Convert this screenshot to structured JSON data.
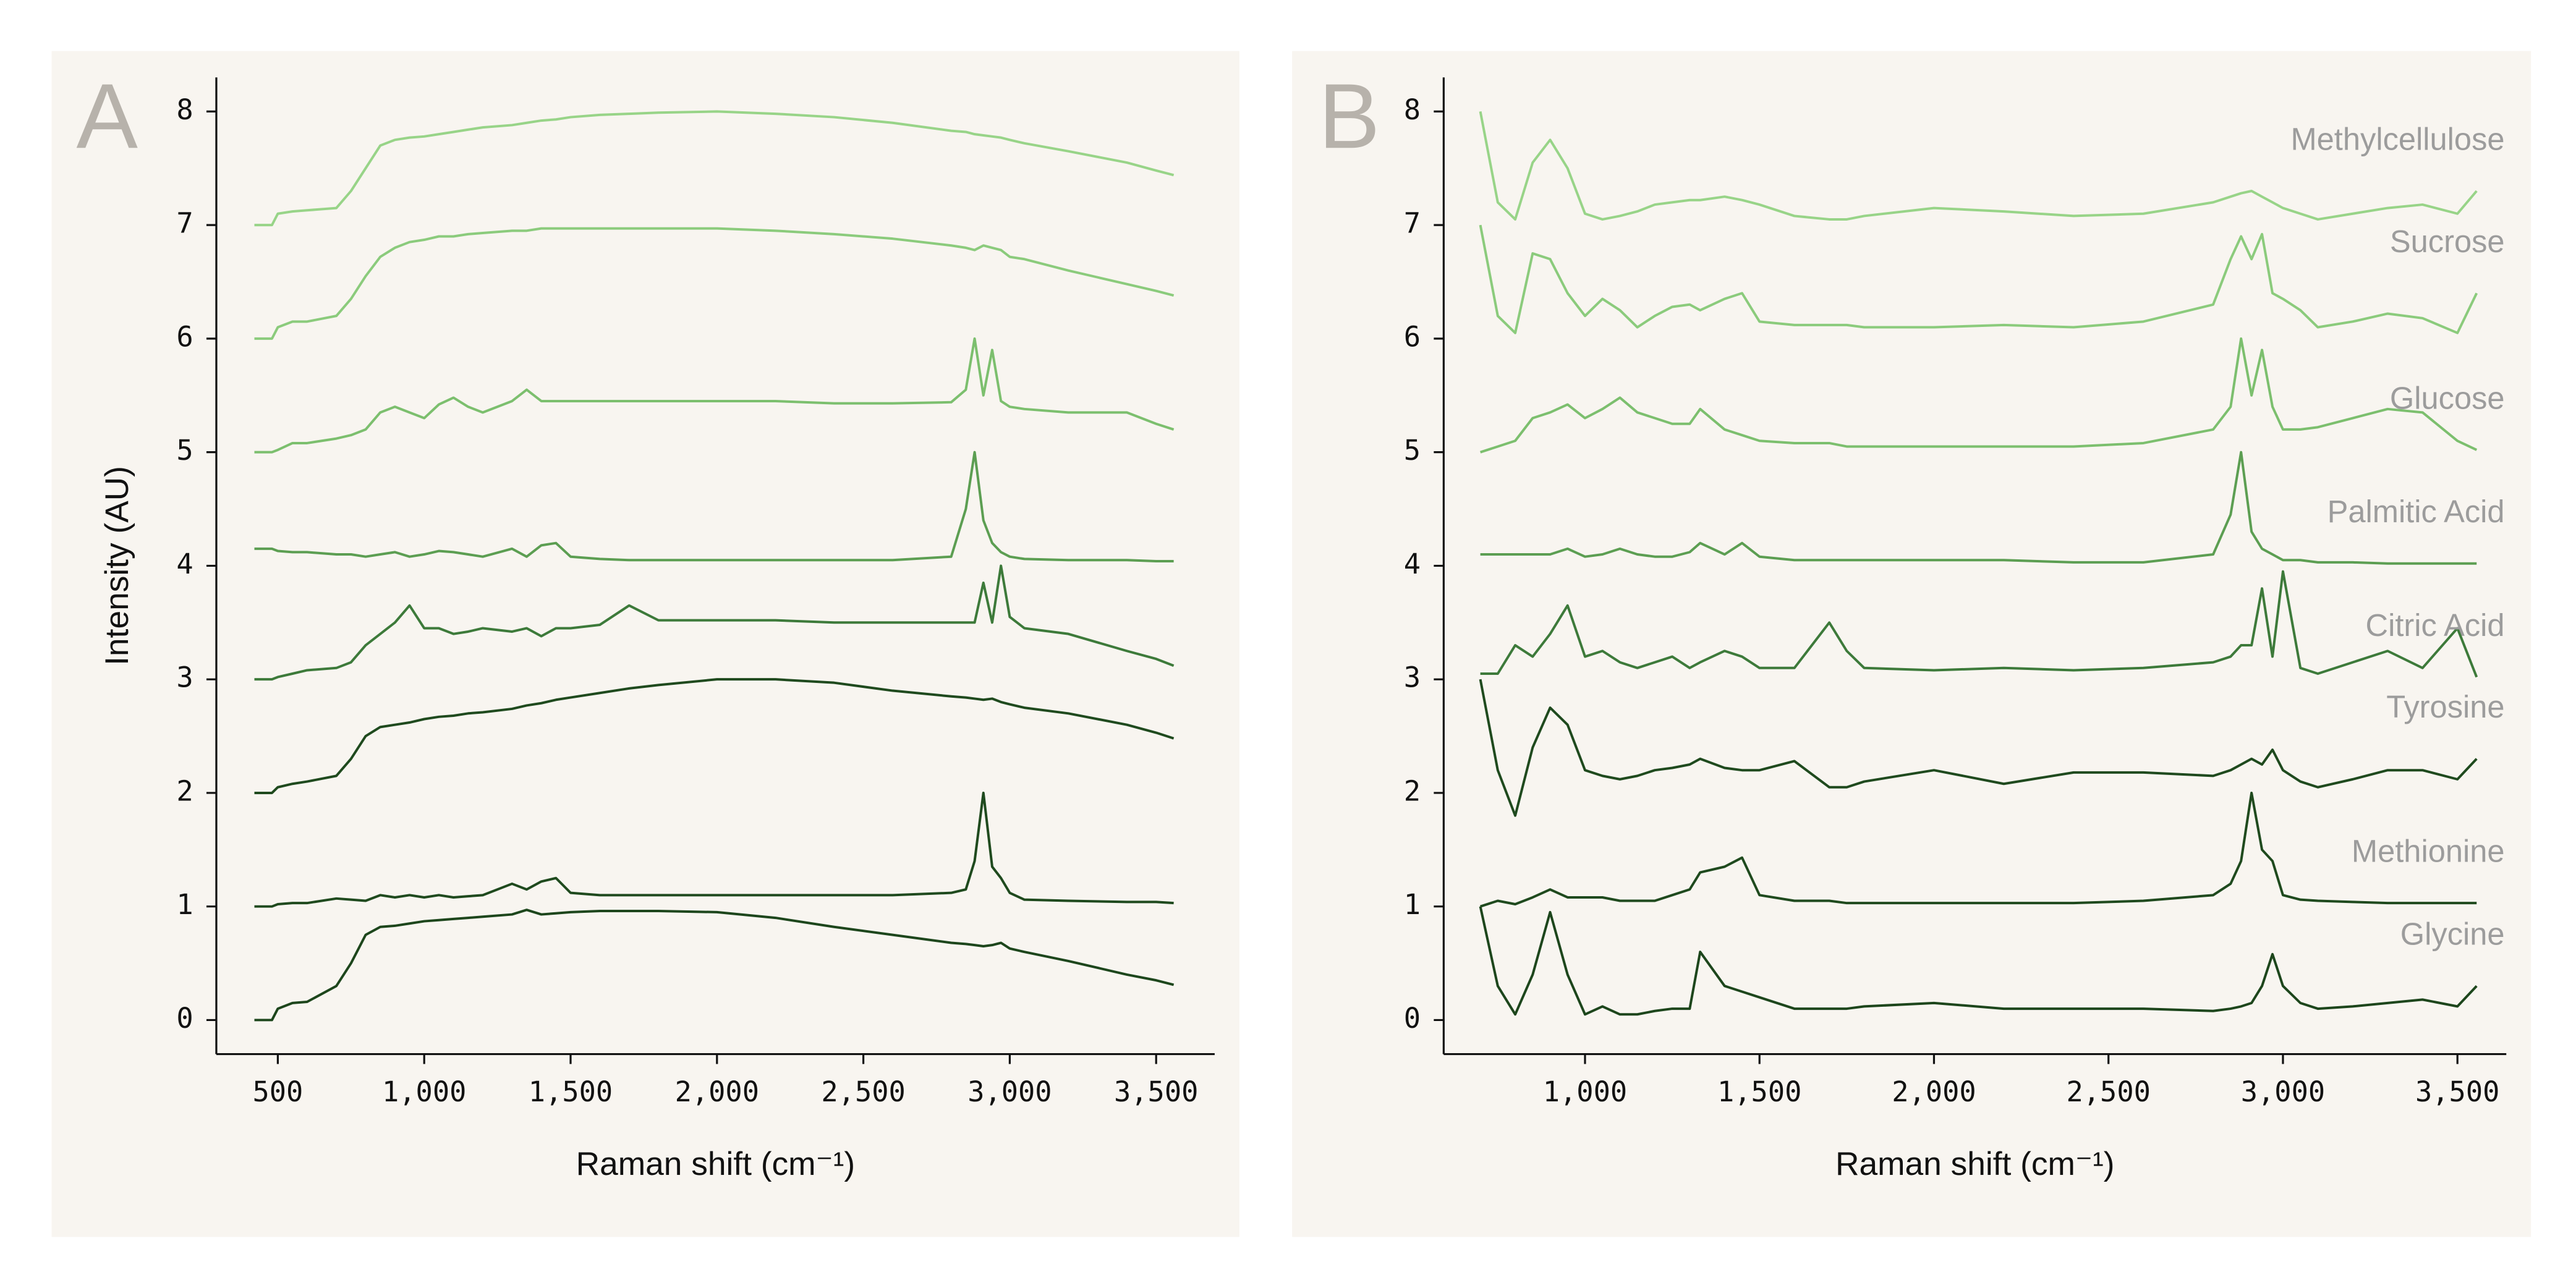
{
  "chart_data": [
    {
      "type": "line",
      "panel_label": "A",
      "x_label": "Raman shift (cm⁻¹)",
      "y_label": "Intensity (AU)",
      "xlim": [
        290,
        3700
      ],
      "ylim": [
        -0.3,
        8.3
      ],
      "xticks": [
        500,
        {
          "value": 1000,
          "label": "1,000"
        },
        {
          "value": 1500,
          "label": "1,500"
        },
        {
          "value": 2000,
          "label": "2,000"
        },
        {
          "value": 2500,
          "label": "2,500"
        },
        {
          "value": 3000,
          "label": "3,000"
        },
        {
          "value": 3500,
          "label": "3,500"
        }
      ],
      "yticks": [
        0,
        1,
        2,
        3,
        4,
        5,
        6,
        7,
        8
      ],
      "x": [
        420,
        480,
        500,
        550,
        600,
        700,
        750,
        800,
        850,
        900,
        950,
        1000,
        1050,
        1100,
        1150,
        1200,
        1300,
        1350,
        1400,
        1450,
        1500,
        1600,
        1700,
        1800,
        2000,
        2200,
        2400,
        2600,
        2800,
        2850,
        2880,
        2910,
        2940,
        2970,
        3000,
        3050,
        3200,
        3400,
        3500,
        3560
      ],
      "series": [
        {
          "color": "#1d461c",
          "values": [
            0,
            0,
            0.1,
            0.15,
            0.16,
            0.3,
            0.5,
            0.75,
            0.82,
            0.83,
            0.85,
            0.87,
            0.88,
            0.89,
            0.9,
            0.91,
            0.93,
            0.97,
            0.93,
            0.94,
            0.95,
            0.96,
            0.96,
            0.96,
            0.95,
            0.9,
            0.82,
            0.75,
            0.68,
            0.67,
            0.66,
            0.65,
            0.66,
            0.68,
            0.63,
            0.6,
            0.52,
            0.4,
            0.35,
            0.31
          ]
        },
        {
          "color": "#1f4a1e",
          "values": [
            1.0,
            1.0,
            1.02,
            1.03,
            1.03,
            1.07,
            1.06,
            1.05,
            1.1,
            1.08,
            1.1,
            1.08,
            1.1,
            1.08,
            1.09,
            1.1,
            1.2,
            1.15,
            1.22,
            1.25,
            1.12,
            1.1,
            1.1,
            1.1,
            1.1,
            1.1,
            1.1,
            1.1,
            1.12,
            1.15,
            1.4,
            2.0,
            1.35,
            1.25,
            1.12,
            1.06,
            1.05,
            1.04,
            1.04,
            1.03
          ]
        },
        {
          "color": "#1f4a1e",
          "values": [
            2,
            2,
            2.05,
            2.08,
            2.1,
            2.15,
            2.3,
            2.5,
            2.58,
            2.6,
            2.62,
            2.65,
            2.67,
            2.68,
            2.7,
            2.71,
            2.74,
            2.77,
            2.79,
            2.82,
            2.84,
            2.88,
            2.92,
            2.95,
            3.0,
            3.0,
            2.97,
            2.9,
            2.85,
            2.84,
            2.83,
            2.82,
            2.83,
            2.8,
            2.78,
            2.75,
            2.7,
            2.6,
            2.53,
            2.48
          ]
        },
        {
          "color": "#3d7a3a",
          "values": [
            3,
            3,
            3.02,
            3.05,
            3.08,
            3.1,
            3.15,
            3.3,
            3.4,
            3.5,
            3.65,
            3.45,
            3.45,
            3.4,
            3.42,
            3.45,
            3.42,
            3.45,
            3.38,
            3.45,
            3.45,
            3.48,
            3.65,
            3.52,
            3.52,
            3.52,
            3.5,
            3.5,
            3.5,
            3.5,
            3.5,
            3.85,
            3.5,
            4.0,
            3.55,
            3.45,
            3.4,
            3.25,
            3.18,
            3.12
          ]
        },
        {
          "color": "#5c9e52",
          "values": [
            4.15,
            4.15,
            4.13,
            4.12,
            4.12,
            4.1,
            4.1,
            4.08,
            4.1,
            4.12,
            4.08,
            4.1,
            4.13,
            4.12,
            4.1,
            4.08,
            4.15,
            4.08,
            4.18,
            4.2,
            4.08,
            4.06,
            4.05,
            4.05,
            4.05,
            4.05,
            4.05,
            4.05,
            4.08,
            4.5,
            5.0,
            4.4,
            4.2,
            4.12,
            4.08,
            4.06,
            4.05,
            4.05,
            4.04,
            4.04
          ]
        },
        {
          "color": "#7cbf6e",
          "values": [
            5,
            5,
            5.02,
            5.08,
            5.08,
            5.12,
            5.15,
            5.2,
            5.35,
            5.4,
            5.35,
            5.3,
            5.42,
            5.48,
            5.4,
            5.35,
            5.45,
            5.55,
            5.45,
            5.45,
            5.45,
            5.45,
            5.45,
            5.45,
            5.45,
            5.45,
            5.43,
            5.43,
            5.44,
            5.55,
            6.0,
            5.5,
            5.9,
            5.45,
            5.4,
            5.38,
            5.35,
            5.35,
            5.25,
            5.2
          ]
        },
        {
          "color": "#8bcb7c",
          "values": [
            6,
            6,
            6.1,
            6.15,
            6.15,
            6.2,
            6.35,
            6.55,
            6.72,
            6.8,
            6.85,
            6.87,
            6.9,
            6.9,
            6.92,
            6.93,
            6.95,
            6.95,
            6.97,
            6.97,
            6.97,
            6.97,
            6.97,
            6.97,
            6.97,
            6.95,
            6.92,
            6.88,
            6.82,
            6.8,
            6.78,
            6.82,
            6.8,
            6.78,
            6.72,
            6.7,
            6.6,
            6.48,
            6.42,
            6.38
          ]
        },
        {
          "color": "#98d488",
          "values": [
            7,
            7,
            7.1,
            7.12,
            7.13,
            7.15,
            7.3,
            7.5,
            7.7,
            7.75,
            7.77,
            7.78,
            7.8,
            7.82,
            7.84,
            7.86,
            7.88,
            7.9,
            7.92,
            7.93,
            7.95,
            7.97,
            7.98,
            7.99,
            8.0,
            7.98,
            7.95,
            7.9,
            7.83,
            7.82,
            7.8,
            7.79,
            7.78,
            7.77,
            7.75,
            7.72,
            7.65,
            7.55,
            7.48,
            7.44
          ]
        }
      ]
    },
    {
      "type": "line",
      "panel_label": "B",
      "x_label": "Raman shift (cm⁻¹)",
      "xlim": [
        595,
        3640
      ],
      "ylim": [
        -0.3,
        8.3
      ],
      "xticks": [
        {
          "value": 1000,
          "label": "1,000"
        },
        {
          "value": 1500,
          "label": "1,500"
        },
        {
          "value": 2000,
          "label": "2,000"
        },
        {
          "value": 2500,
          "label": "2,500"
        },
        {
          "value": 3000,
          "label": "3,000"
        },
        {
          "value": 3500,
          "label": "3,500"
        }
      ],
      "yticks": [
        0,
        1,
        2,
        3,
        4,
        5,
        6,
        7,
        8
      ],
      "x": [
        700,
        750,
        800,
        850,
        900,
        950,
        1000,
        1050,
        1100,
        1150,
        1200,
        1250,
        1300,
        1330,
        1400,
        1450,
        1500,
        1600,
        1700,
        1750,
        1800,
        2000,
        2200,
        2400,
        2600,
        2800,
        2850,
        2880,
        2910,
        2940,
        2970,
        3000,
        3050,
        3100,
        3200,
        3300,
        3400,
        3500,
        3555
      ],
      "series": [
        {
          "name": "Glycine",
          "color": "#1d461c",
          "values": [
            1.0,
            0.3,
            0.05,
            0.4,
            0.95,
            0.4,
            0.05,
            0.12,
            0.05,
            0.05,
            0.08,
            0.1,
            0.1,
            0.6,
            0.3,
            0.25,
            0.2,
            0.1,
            0.1,
            0.1,
            0.12,
            0.15,
            0.1,
            0.1,
            0.1,
            0.08,
            0.1,
            0.12,
            0.15,
            0.3,
            0.58,
            0.3,
            0.15,
            0.1,
            0.12,
            0.15,
            0.18,
            0.12,
            0.3
          ]
        },
        {
          "name": "Methionine",
          "color": "#1f4a1e",
          "values": [
            1.0,
            1.05,
            1.02,
            1.08,
            1.15,
            1.08,
            1.08,
            1.08,
            1.05,
            1.05,
            1.05,
            1.1,
            1.15,
            1.3,
            1.35,
            1.43,
            1.1,
            1.05,
            1.05,
            1.03,
            1.03,
            1.03,
            1.03,
            1.03,
            1.05,
            1.1,
            1.2,
            1.4,
            2.0,
            1.5,
            1.4,
            1.1,
            1.06,
            1.05,
            1.04,
            1.03,
            1.03,
            1.03,
            1.03
          ]
        },
        {
          "name": "Tyrosine",
          "color": "#1f4a1e",
          "values": [
            3.0,
            2.2,
            1.8,
            2.4,
            2.75,
            2.6,
            2.2,
            2.15,
            2.12,
            2.15,
            2.2,
            2.22,
            2.25,
            2.3,
            2.22,
            2.2,
            2.2,
            2.28,
            2.05,
            2.05,
            2.1,
            2.2,
            2.08,
            2.18,
            2.18,
            2.15,
            2.2,
            2.25,
            2.3,
            2.25,
            2.38,
            2.2,
            2.1,
            2.05,
            2.12,
            2.2,
            2.2,
            2.12,
            2.3
          ]
        },
        {
          "name": "Citric Acid",
          "color": "#3d7a3a",
          "values": [
            3.05,
            3.05,
            3.3,
            3.2,
            3.4,
            3.65,
            3.2,
            3.25,
            3.15,
            3.1,
            3.15,
            3.2,
            3.1,
            3.15,
            3.25,
            3.2,
            3.1,
            3.1,
            3.5,
            3.25,
            3.1,
            3.08,
            3.1,
            3.08,
            3.1,
            3.15,
            3.2,
            3.3,
            3.3,
            3.8,
            3.2,
            3.95,
            3.1,
            3.05,
            3.15,
            3.25,
            3.1,
            3.45,
            3.02
          ]
        },
        {
          "name": "Palmitic Acid",
          "color": "#5c9e52",
          "values": [
            4.1,
            4.1,
            4.1,
            4.1,
            4.1,
            4.15,
            4.08,
            4.1,
            4.15,
            4.1,
            4.08,
            4.08,
            4.12,
            4.2,
            4.1,
            4.2,
            4.08,
            4.05,
            4.05,
            4.05,
            4.05,
            4.05,
            4.05,
            4.03,
            4.03,
            4.1,
            4.45,
            5.0,
            4.3,
            4.15,
            4.1,
            4.05,
            4.05,
            4.03,
            4.03,
            4.02,
            4.02,
            4.02,
            4.02
          ]
        },
        {
          "name": "Glucose",
          "color": "#7cbf6e",
          "values": [
            5,
            5.05,
            5.1,
            5.3,
            5.35,
            5.42,
            5.3,
            5.38,
            5.48,
            5.35,
            5.3,
            5.25,
            5.25,
            5.38,
            5.2,
            5.15,
            5.1,
            5.08,
            5.08,
            5.05,
            5.05,
            5.05,
            5.05,
            5.05,
            5.08,
            5.2,
            5.4,
            6.0,
            5.5,
            5.9,
            5.4,
            5.2,
            5.2,
            5.22,
            5.3,
            5.38,
            5.35,
            5.1,
            5.02
          ]
        },
        {
          "name": "Sucrose",
          "color": "#8bcb7c",
          "values": [
            7.0,
            6.2,
            6.05,
            6.75,
            6.7,
            6.4,
            6.2,
            6.35,
            6.25,
            6.1,
            6.2,
            6.28,
            6.3,
            6.25,
            6.35,
            6.4,
            6.15,
            6.12,
            6.12,
            6.12,
            6.1,
            6.1,
            6.12,
            6.1,
            6.15,
            6.3,
            6.7,
            6.9,
            6.7,
            6.92,
            6.4,
            6.35,
            6.25,
            6.1,
            6.15,
            6.22,
            6.18,
            6.05,
            6.4
          ]
        },
        {
          "name": "Methylcellulose",
          "color": "#98d488",
          "values": [
            8.0,
            7.2,
            7.05,
            7.55,
            7.75,
            7.5,
            7.1,
            7.05,
            7.08,
            7.12,
            7.18,
            7.2,
            7.22,
            7.22,
            7.25,
            7.22,
            7.18,
            7.08,
            7.05,
            7.05,
            7.08,
            7.15,
            7.12,
            7.08,
            7.1,
            7.2,
            7.25,
            7.28,
            7.3,
            7.25,
            7.2,
            7.15,
            7.1,
            7.05,
            7.1,
            7.15,
            7.18,
            7.1,
            7.3
          ]
        }
      ]
    }
  ]
}
